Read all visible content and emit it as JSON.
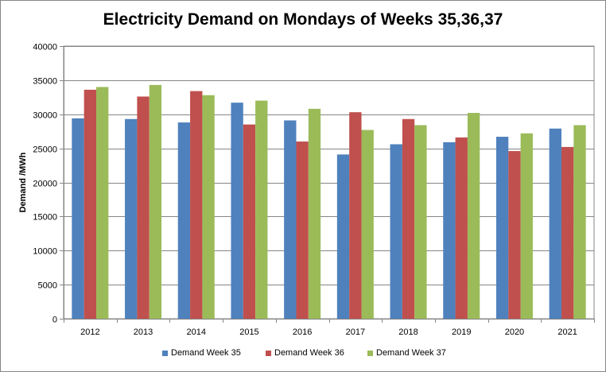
{
  "chart_data": {
    "type": "bar",
    "title": "Electricity Demand on Mondays of Weeks 35,36,37",
    "xlabel": "",
    "ylabel": "Demand /MWh",
    "ylim": [
      0,
      40000
    ],
    "yticks": [
      0,
      5000,
      10000,
      15000,
      20000,
      25000,
      30000,
      35000,
      40000
    ],
    "grid": true,
    "legend_position": "bottom",
    "categories": [
      "2012",
      "2013",
      "2014",
      "2015",
      "2016",
      "2017",
      "2018",
      "2019",
      "2020",
      "2021"
    ],
    "series": [
      {
        "name": "Demand Week 35",
        "color": "#4f81bd",
        "values": [
          29400,
          29300,
          28800,
          31700,
          29100,
          24100,
          25600,
          25900,
          26700,
          27900
        ]
      },
      {
        "name": "Demand Week 36",
        "color": "#c0504d",
        "values": [
          33600,
          32600,
          33400,
          28500,
          26000,
          30300,
          29300,
          26600,
          24600,
          25200
        ]
      },
      {
        "name": "Demand Week 37",
        "color": "#9bbb59",
        "values": [
          34000,
          34300,
          32800,
          32000,
          30800,
          27700,
          28400,
          30200,
          27200,
          28400
        ]
      }
    ]
  }
}
